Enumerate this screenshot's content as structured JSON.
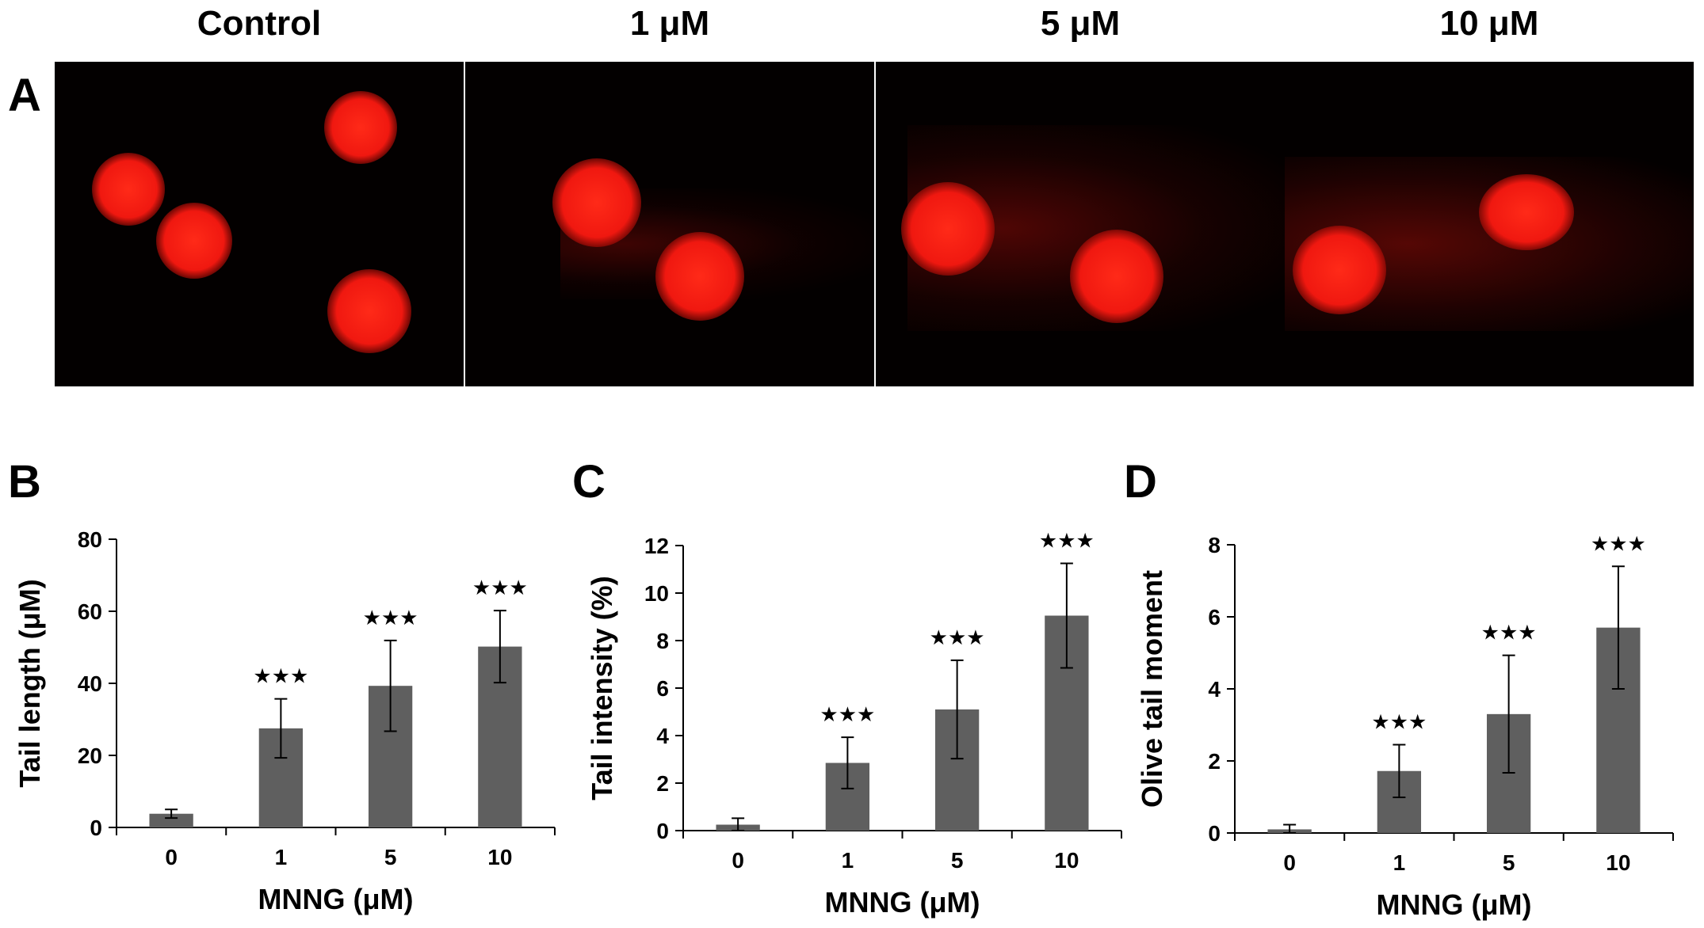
{
  "panels": {
    "a": "A",
    "b": "B",
    "c": "C",
    "d": "D"
  },
  "image_panel": {
    "titles": [
      "Control",
      "1 μM",
      "5 μM",
      "10 μM"
    ]
  },
  "colors": {
    "bar": "#5f5f5f",
    "micrograph_bg": "#030000",
    "cell": "#ff1a10",
    "separator": "#ffffff"
  },
  "chart_data": [
    {
      "type": "bar",
      "panel": "B",
      "categories": [
        "0",
        "1",
        "5",
        "10"
      ],
      "values": [
        3.8,
        27.5,
        39.3,
        50.2
      ],
      "errors": [
        1.2,
        8.2,
        12.6,
        10.0
      ],
      "significance": [
        "",
        "★★★",
        "★★★",
        "★★★"
      ],
      "xlabel": "MNNG (μM)",
      "ylabel": "Tail length (μM)",
      "ylim": [
        0,
        80
      ],
      "yticks": [
        0,
        20,
        40,
        60,
        80
      ],
      "grid": false
    },
    {
      "type": "bar",
      "panel": "C",
      "categories": [
        "0",
        "1",
        "5",
        "10"
      ],
      "values": [
        0.25,
        2.85,
        5.1,
        9.05
      ],
      "errors": [
        0.27,
        1.08,
        2.07,
        2.2
      ],
      "significance": [
        "",
        "★★★",
        "★★★",
        "★★★"
      ],
      "xlabel": "MNNG (μM)",
      "ylabel": "Tail intensity (%)",
      "ylim": [
        0,
        12
      ],
      "yticks": [
        0,
        2,
        4,
        6,
        8,
        10,
        12
      ],
      "grid": false
    },
    {
      "type": "bar",
      "panel": "D",
      "categories": [
        "0",
        "1",
        "5",
        "10"
      ],
      "values": [
        0.1,
        1.72,
        3.3,
        5.7
      ],
      "errors": [
        0.13,
        0.73,
        1.63,
        1.7
      ],
      "significance": [
        "",
        "★★★",
        "★★★",
        "★★★"
      ],
      "xlabel": "MNNG (μM)",
      "ylabel": "Olive tail moment",
      "ylim": [
        0,
        8
      ],
      "yticks": [
        0,
        2,
        4,
        6,
        8
      ],
      "grid": false
    }
  ]
}
